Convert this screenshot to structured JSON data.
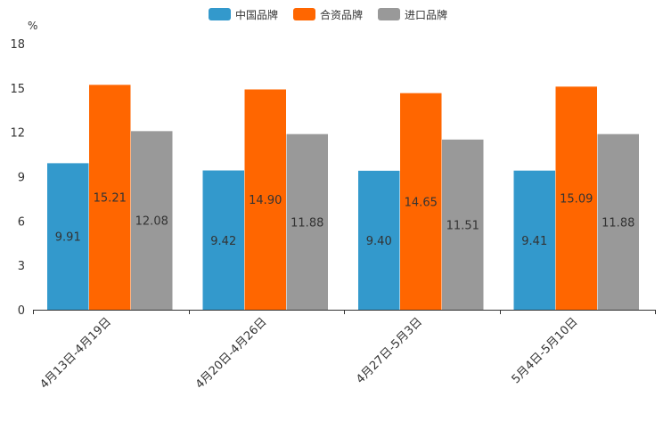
{
  "chart_data": {
    "type": "bar",
    "title": "",
    "unit_label": "%",
    "xlabel": "",
    "ylabel": "",
    "ylim": [
      0,
      18
    ],
    "yticks": [
      0,
      3,
      6,
      9,
      12,
      15,
      18
    ],
    "grid": false,
    "legend_position": "top-center",
    "categories": [
      "4月13日-4月19日",
      "4月20日-4月26日",
      "4月27日-5月3日",
      "5月4日-5月10日"
    ],
    "series": [
      {
        "name": "中国品牌",
        "color": "#3399cc",
        "values": [
          9.91,
          9.42,
          9.4,
          9.41
        ],
        "labels": [
          "9.91",
          "9.42",
          "9.40",
          "9.41"
        ]
      },
      {
        "name": "合资品牌",
        "color": "#ff6600",
        "values": [
          15.21,
          14.9,
          14.65,
          15.09
        ],
        "labels": [
          "15.21",
          "14.90",
          "14.65",
          "15.09"
        ]
      },
      {
        "name": "进口品牌",
        "color": "#999999",
        "values": [
          12.08,
          11.88,
          11.51,
          11.88
        ],
        "labels": [
          "12.08",
          "11.88",
          "11.51",
          "11.88"
        ]
      }
    ]
  }
}
